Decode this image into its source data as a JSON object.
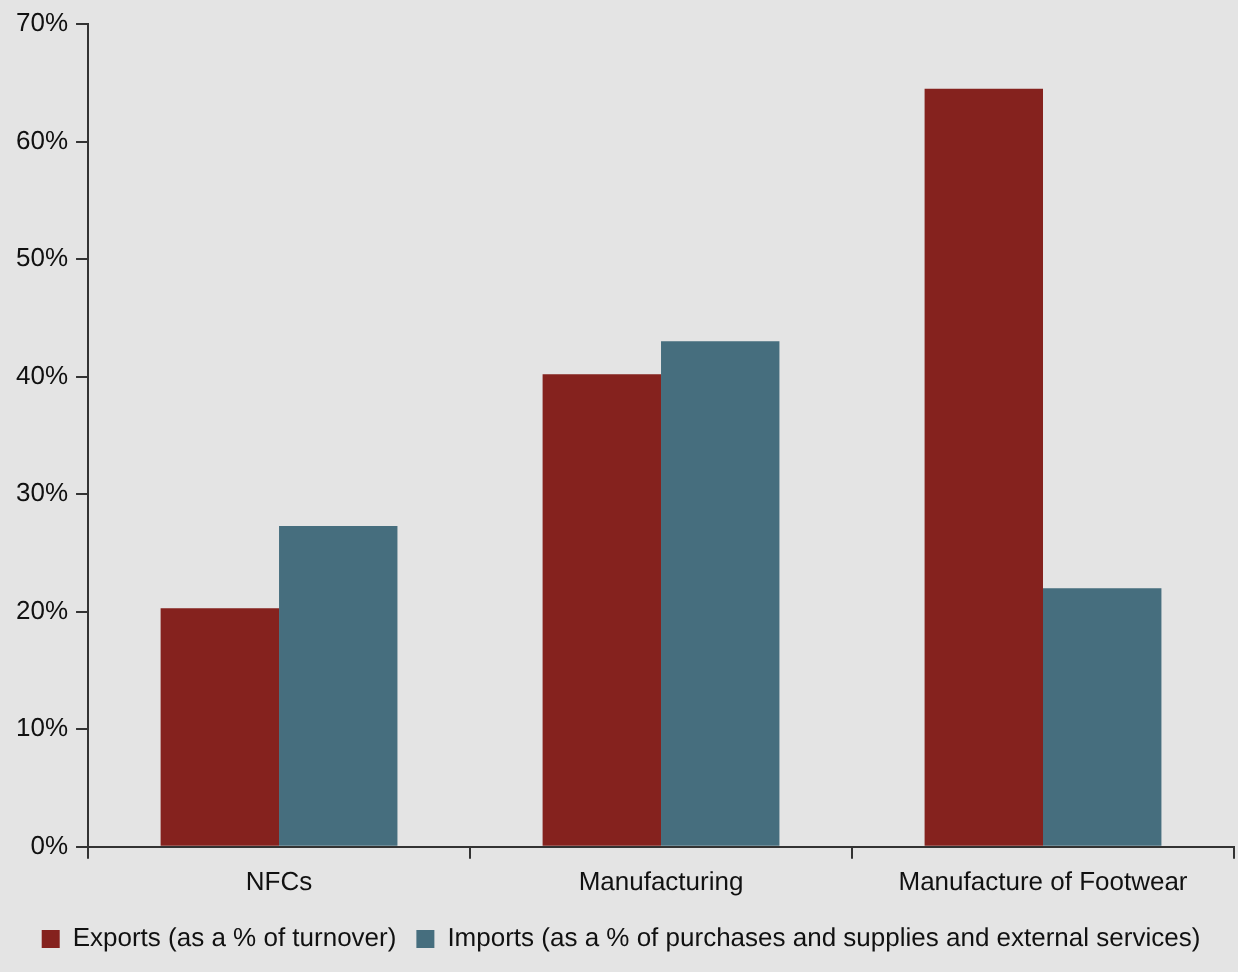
{
  "chart_data": {
    "type": "bar",
    "categories": [
      "NFCs",
      "Manufacturing",
      "Manufacture of Footwear"
    ],
    "series": [
      {
        "name": "Exports (as a % of turnover)",
        "color": "#85221e",
        "values": [
          20.3,
          40.2,
          64.5
        ]
      },
      {
        "name": "Imports (as a % of purchases and supplies and external services)",
        "color": "#466e7e",
        "values": [
          27.3,
          43,
          22
        ]
      }
    ],
    "ylim": [
      0,
      70
    ],
    "yticks": [
      {
        "value": 0,
        "label": "0%"
      },
      {
        "value": 10,
        "label": "10%"
      },
      {
        "value": 20,
        "label": "20%"
      },
      {
        "value": 30,
        "label": "30%"
      },
      {
        "value": 40,
        "label": "40%"
      },
      {
        "value": 50,
        "label": "50%"
      },
      {
        "value": 60,
        "label": "60%"
      },
      {
        "value": 70,
        "label": "70%"
      }
    ],
    "grid": false,
    "legend": "bottom"
  }
}
